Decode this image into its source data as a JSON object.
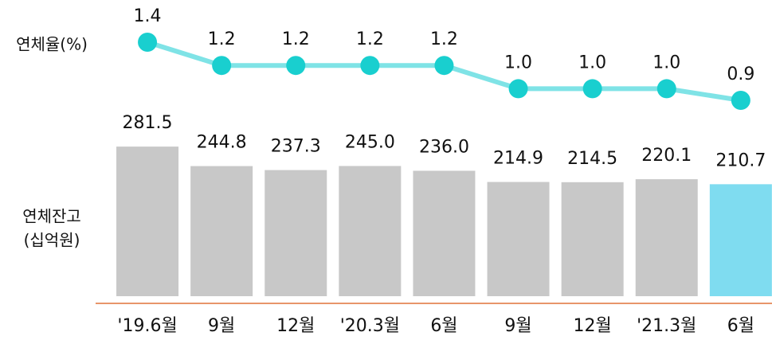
{
  "chart_data": {
    "type": "bar-line",
    "categories": [
      "'19.6월",
      "9월",
      "12월",
      "'20.3월",
      "6월",
      "9월",
      "12월",
      "'21.3월",
      "6월"
    ],
    "series": [
      {
        "name": "연체잔고",
        "type": "bar",
        "color": "#c8c8c8",
        "colors": [
          "#c8c8c8",
          "#c8c8c8",
          "#c8c8c8",
          "#c8c8c8",
          "#c8c8c8",
          "#c8c8c8",
          "#c8c8c8",
          "#c8c8c8",
          "#7fdcf0"
        ],
        "values": [
          281.5,
          244.8,
          237.3,
          245.0,
          236.0,
          214.9,
          214.5,
          220.1,
          210.7
        ],
        "value_labels": [
          "281.5",
          "244.8",
          "237.3",
          "245.0",
          "236.0",
          "214.9",
          "214.5",
          "220.1",
          "210.7"
        ]
      },
      {
        "name": "연체율",
        "type": "line",
        "axis": "y2",
        "color": "#7fe3e6",
        "marker_color": "#19cfcf",
        "values": [
          1.4,
          1.2,
          1.2,
          1.2,
          1.2,
          1.0,
          1.0,
          1.0,
          0.9
        ],
        "value_labels": [
          "1.4",
          "1.2",
          "1.2",
          "1.2",
          "1.2",
          "1.0",
          "1.0",
          "1.0",
          "0.9"
        ]
      }
    ],
    "y2label": "연체율(%)",
    "ylabel": [
      "연체잔고",
      "(십억원)"
    ],
    "ylim": [
      0,
      400
    ],
    "y2lim": [
      0.8,
      1.6
    ]
  }
}
